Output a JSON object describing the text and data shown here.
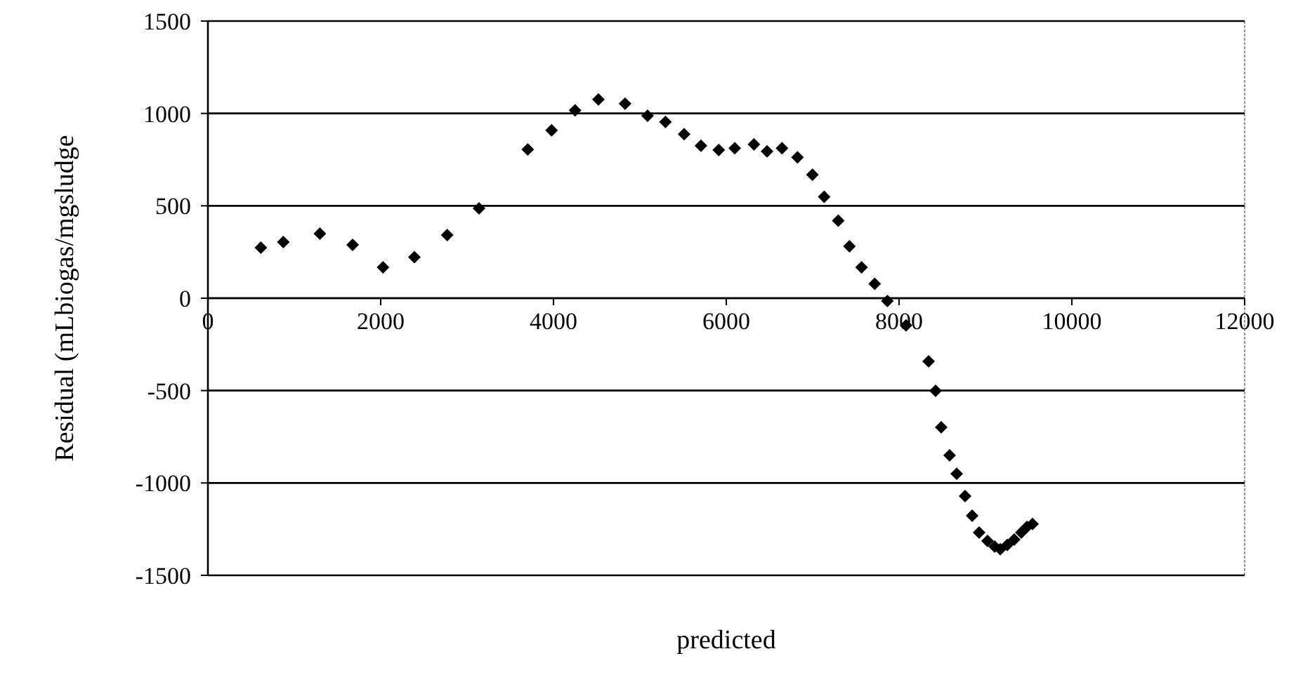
{
  "chart_data": {
    "type": "scatter",
    "xlabel": "predicted",
    "ylabel": "Residual (mLbiogas/mgsludge",
    "x": [
      613,
      873,
      1296,
      1675,
      2027,
      2390,
      2770,
      3138,
      3702,
      3978,
      4250,
      4520,
      4829,
      5089,
      5296,
      5512,
      5707,
      5913,
      6098,
      6320,
      6472,
      6645,
      6824,
      6997,
      7133,
      7296,
      7426,
      7566,
      7718,
      7865,
      8081,
      8342,
      8423,
      8488,
      8585,
      8667,
      8764,
      8846,
      8927,
      9024,
      9106,
      9171,
      9252,
      9333,
      9415,
      9480,
      9545
    ],
    "series": [
      {
        "color": "#000000",
        "values": [
          273,
          304,
          349,
          289,
          167,
          222,
          342,
          486,
          805,
          909,
          1017,
          1076,
          1053,
          987,
          954,
          888,
          825,
          802,
          812,
          833,
          795,
          812,
          762,
          668,
          549,
          420,
          281,
          167,
          78,
          -15,
          -147,
          -342,
          -501,
          -699,
          -851,
          -950,
          -1071,
          -1177,
          -1268,
          -1314,
          -1344,
          -1359,
          -1336,
          -1306,
          -1268,
          -1238,
          -1222
        ]
      }
    ],
    "xlim": [
      0,
      12000
    ],
    "xticks": [
      0,
      2000,
      4000,
      6000,
      8000,
      10000,
      12000
    ],
    "ylim": [
      -1500,
      1500
    ],
    "yticks": [
      -1500,
      -1000,
      -500,
      0,
      500,
      1000,
      1500
    ],
    "grid": "y",
    "marker": "diamond"
  }
}
